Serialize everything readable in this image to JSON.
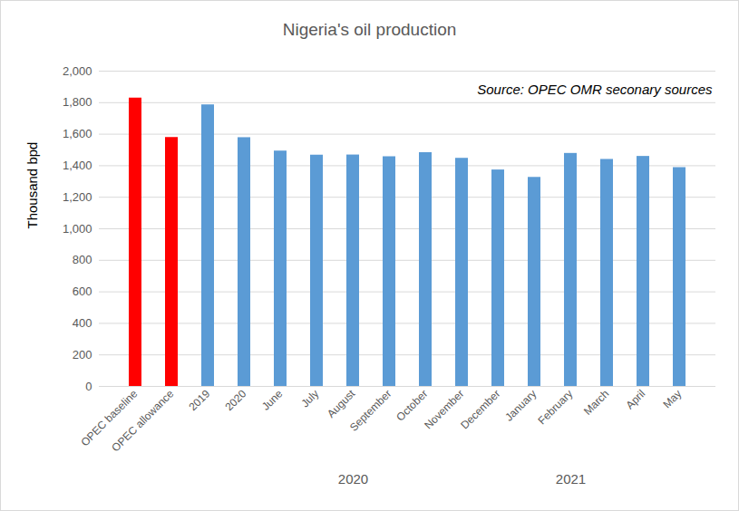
{
  "chart_data": {
    "type": "bar",
    "title": "Nigeria's oil production",
    "y_label": "Thousand bpd",
    "categories": [
      "OPEC baseline",
      "OPEC allowance",
      "2019",
      "2020",
      "June",
      "July",
      "August",
      "September",
      "October",
      "November",
      "December",
      "January",
      "February",
      "March",
      "April",
      "May"
    ],
    "values": [
      1829,
      1579,
      1786,
      1578,
      1493,
      1467,
      1468,
      1457,
      1483,
      1447,
      1373,
      1326,
      1478,
      1440,
      1459,
      1388
    ],
    "colors": [
      "#ff0000",
      "#ff0000",
      "#5b9bd5",
      "#5b9bd5",
      "#5b9bd5",
      "#5b9bd5",
      "#5b9bd5",
      "#5b9bd5",
      "#5b9bd5",
      "#5b9bd5",
      "#5b9bd5",
      "#5b9bd5",
      "#5b9bd5",
      "#5b9bd5",
      "#5b9bd5",
      "#5b9bd5"
    ],
    "ylim": [
      0,
      2000
    ],
    "yticks": [
      0,
      200,
      400,
      600,
      800,
      1000,
      1200,
      1400,
      1600,
      1800,
      2000
    ],
    "grid": true,
    "annotations": [
      {
        "text": "Source: OPEC OMR seconary sources"
      },
      {
        "text": "2020",
        "category": "August"
      },
      {
        "text": "2021",
        "category": "February"
      }
    ]
  }
}
